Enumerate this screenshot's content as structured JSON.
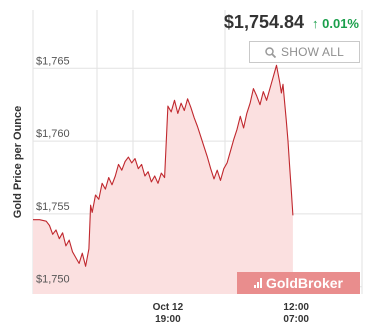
{
  "header": {
    "price": "$1,754.84",
    "change": "0.01%",
    "change_icon": "arrow-up-icon",
    "change_color": "#1a9f4b"
  },
  "controls": {
    "show_all_label": "SHOW ALL",
    "show_all_icon": "zoom-icon"
  },
  "watermark": {
    "text": "GoldBroker",
    "color": "#e98d8d"
  },
  "chart_data": {
    "type": "area",
    "ylabel": "Gold Price per Ounce",
    "ylim": [
      1749.5,
      1769
    ],
    "y_ticks": [
      {
        "value": 1750,
        "label": "$1,750"
      },
      {
        "value": 1755,
        "label": "$1,755"
      },
      {
        "value": 1760,
        "label": "$1,760"
      },
      {
        "value": 1765,
        "label": "$1,765"
      }
    ],
    "x_ticks": [
      {
        "x": 0.41,
        "line1": "Oct 12",
        "line2": "19:00"
      },
      {
        "x": 0.8,
        "line1": "12:00",
        "line2": "07:00"
      }
    ],
    "grid": true,
    "series": [
      {
        "line_color": "#c0282e",
        "fill_color": "#fbe0e0",
        "points": [
          [
            0.0,
            1754.6
          ],
          [
            0.02,
            1754.6
          ],
          [
            0.04,
            1754.5
          ],
          [
            0.05,
            1754.2
          ],
          [
            0.06,
            1753.6
          ],
          [
            0.07,
            1753.9
          ],
          [
            0.08,
            1753.3
          ],
          [
            0.09,
            1753.7
          ],
          [
            0.1,
            1752.8
          ],
          [
            0.11,
            1753.2
          ],
          [
            0.12,
            1752.4
          ],
          [
            0.13,
            1752.0
          ],
          [
            0.14,
            1751.6
          ],
          [
            0.15,
            1752.3
          ],
          [
            0.16,
            1751.4
          ],
          [
            0.17,
            1752.6
          ],
          [
            0.175,
            1755.6
          ],
          [
            0.18,
            1755.1
          ],
          [
            0.19,
            1756.3
          ],
          [
            0.2,
            1756.0
          ],
          [
            0.21,
            1757.1
          ],
          [
            0.22,
            1756.7
          ],
          [
            0.23,
            1757.5
          ],
          [
            0.24,
            1757.0
          ],
          [
            0.25,
            1757.6
          ],
          [
            0.26,
            1758.4
          ],
          [
            0.27,
            1758.0
          ],
          [
            0.28,
            1758.6
          ],
          [
            0.29,
            1758.9
          ],
          [
            0.3,
            1758.5
          ],
          [
            0.31,
            1758.8
          ],
          [
            0.32,
            1758.1
          ],
          [
            0.33,
            1758.4
          ],
          [
            0.34,
            1757.6
          ],
          [
            0.35,
            1757.9
          ],
          [
            0.36,
            1757.2
          ],
          [
            0.37,
            1757.6
          ],
          [
            0.38,
            1757.1
          ],
          [
            0.39,
            1757.8
          ],
          [
            0.4,
            1757.5
          ],
          [
            0.41,
            1762.4
          ],
          [
            0.42,
            1762.0
          ],
          [
            0.43,
            1762.8
          ],
          [
            0.44,
            1761.9
          ],
          [
            0.45,
            1762.6
          ],
          [
            0.46,
            1762.1
          ],
          [
            0.47,
            1762.9
          ],
          [
            0.48,
            1762.3
          ],
          [
            0.49,
            1761.6
          ],
          [
            0.5,
            1761.0
          ],
          [
            0.51,
            1760.3
          ],
          [
            0.52,
            1759.6
          ],
          [
            0.53,
            1758.9
          ],
          [
            0.54,
            1758.1
          ],
          [
            0.55,
            1757.4
          ],
          [
            0.56,
            1758.0
          ],
          [
            0.57,
            1757.3
          ],
          [
            0.58,
            1758.1
          ],
          [
            0.59,
            1758.5
          ],
          [
            0.6,
            1759.3
          ],
          [
            0.61,
            1760.1
          ],
          [
            0.62,
            1760.8
          ],
          [
            0.63,
            1761.7
          ],
          [
            0.64,
            1760.9
          ],
          [
            0.65,
            1761.9
          ],
          [
            0.66,
            1762.6
          ],
          [
            0.67,
            1763.6
          ],
          [
            0.68,
            1763.1
          ],
          [
            0.69,
            1762.5
          ],
          [
            0.7,
            1763.4
          ],
          [
            0.71,
            1762.8
          ],
          [
            0.72,
            1763.6
          ],
          [
            0.73,
            1764.4
          ],
          [
            0.74,
            1765.2
          ],
          [
            0.75,
            1764.0
          ],
          [
            0.755,
            1763.3
          ],
          [
            0.76,
            1763.9
          ],
          [
            0.765,
            1762.6
          ],
          [
            0.77,
            1761.4
          ],
          [
            0.775,
            1760.0
          ],
          [
            0.78,
            1758.3
          ],
          [
            0.785,
            1756.6
          ],
          [
            0.79,
            1754.9
          ]
        ]
      }
    ]
  }
}
